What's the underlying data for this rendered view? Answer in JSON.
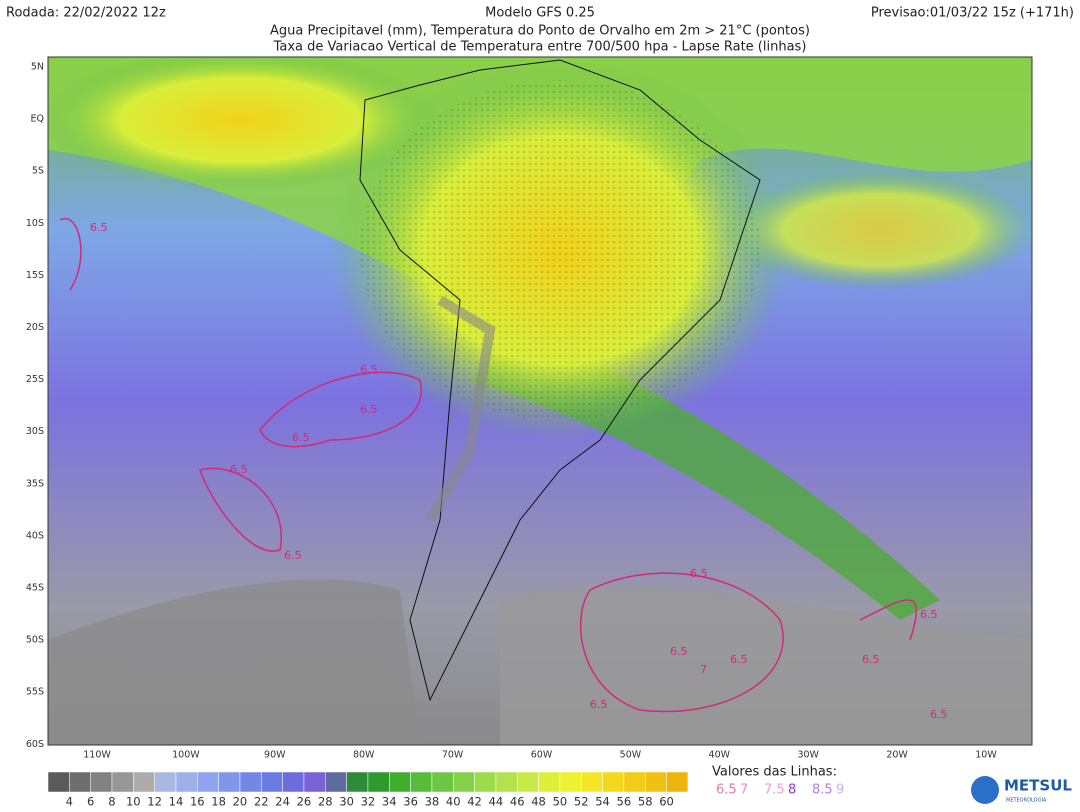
{
  "header": {
    "run": "Rodada: 22/02/2022 12z",
    "model": "Modelo GFS 0.25",
    "forecast": "Previsao:01/03/22 15z (+171h)",
    "subtitle_1": "Agua Precipitavel (mm), Temperatura do Ponto de Orvalho em 2m > 21°C (pontos)",
    "subtitle_2": "Taxa de Variacao Vertical de Temperatura entre 700/500 hpa - Lapse Rate (linhas)"
  },
  "latitude_labels": [
    "5N",
    "EQ",
    "5S",
    "10S",
    "15S",
    "20S",
    "25S",
    "30S",
    "35S",
    "40S",
    "45S",
    "50S",
    "55S",
    "60S"
  ],
  "longitude_labels": [
    "110W",
    "100W",
    "90W",
    "80W",
    "70W",
    "60W",
    "50W",
    "40W",
    "30W",
    "20W",
    "10W"
  ],
  "colorbar": {
    "labels": [
      4,
      6,
      8,
      10,
      12,
      14,
      16,
      18,
      20,
      22,
      24,
      26,
      28,
      30,
      32,
      34,
      36,
      38,
      40,
      42,
      44,
      46,
      48,
      50,
      52,
      54,
      56,
      58,
      60
    ]
  },
  "line_legend": {
    "title": "Valores das Linhas:",
    "values": [
      6.5,
      7,
      7.5,
      8,
      8.5,
      9
    ]
  },
  "contour_labels": [
    6.5,
    6.5,
    6.5,
    6.5,
    6.5,
    6.5,
    6.5,
    6.5,
    6.5,
    7,
    6.5,
    6.5,
    6.5,
    6.5
  ],
  "logo": {
    "name": "METSUL",
    "tagline": "METEOROLOGIA"
  }
}
